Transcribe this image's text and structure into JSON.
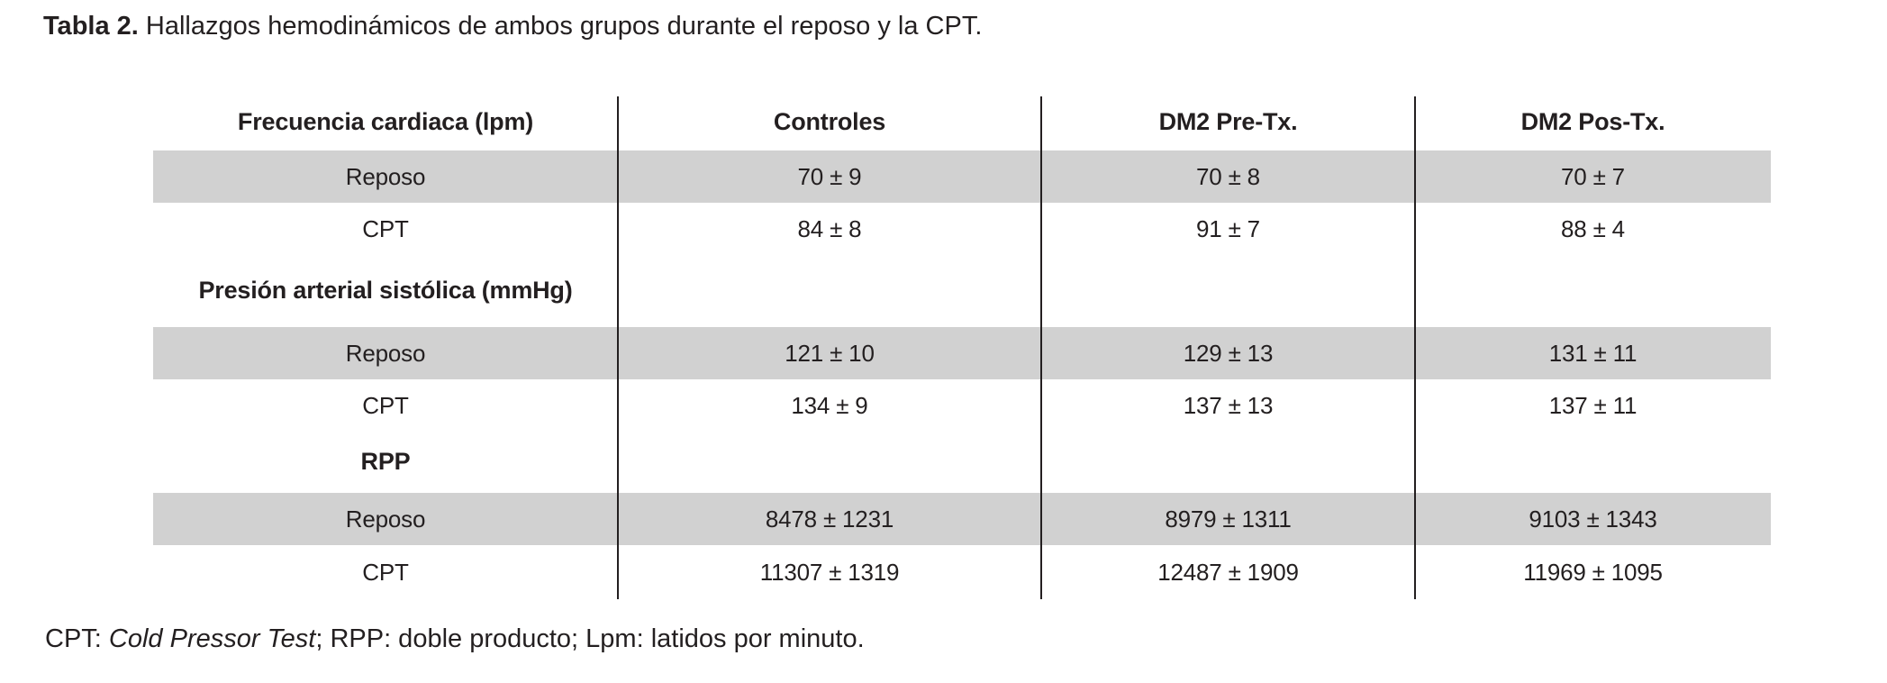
{
  "caption": {
    "label": "Tabla 2.",
    "text": " Hallazgos hemodinámicos de ambos grupos durante el reposo y la CPT."
  },
  "table": {
    "headers": [
      "Frecuencia cardiaca (lpm)",
      "Controles",
      "DM2 Pre-Tx.",
      "DM2 Pos-Tx."
    ],
    "rows": [
      {
        "label": "Reposo",
        "values": [
          "70 ± 9",
          "70 ± 8",
          "70 ± 7"
        ],
        "shaded": true,
        "section": false
      },
      {
        "label": "CPT",
        "values": [
          "84 ± 8",
          "91 ± 7",
          "88 ± 4"
        ],
        "shaded": false,
        "section": false
      },
      {
        "label": "Presión arterial sistólica (mmHg)",
        "values": [
          "",
          "",
          ""
        ],
        "shaded": false,
        "section": true
      },
      {
        "label": "Reposo",
        "values": [
          "121 ± 10",
          "129 ± 13",
          "131 ± 11"
        ],
        "shaded": true,
        "section": false
      },
      {
        "label": "CPT",
        "values": [
          "134 ± 9",
          "137 ± 13",
          "137 ± 11"
        ],
        "shaded": false,
        "section": false
      },
      {
        "label": "RPP",
        "values": [
          "",
          "",
          ""
        ],
        "shaded": false,
        "section": true
      },
      {
        "label": "Reposo",
        "values": [
          "8478 ± 1231",
          "8979 ± 1311",
          "9103 ± 1343"
        ],
        "shaded": true,
        "section": false
      },
      {
        "label": "CPT",
        "values": [
          "11307 ± 1319",
          "12487 ± 1909",
          "11969 ± 1095"
        ],
        "shaded": false,
        "section": false
      }
    ]
  },
  "footnote": {
    "prefix": "CPT: ",
    "italic_term": "Cold Pressor Test",
    "rest": "; RPP: doble producto; Lpm: latidos por minuto."
  },
  "colors": {
    "row_shade": "#d1d1d1",
    "text": "#231f20",
    "divider": "#231f20",
    "background": "#ffffff"
  }
}
